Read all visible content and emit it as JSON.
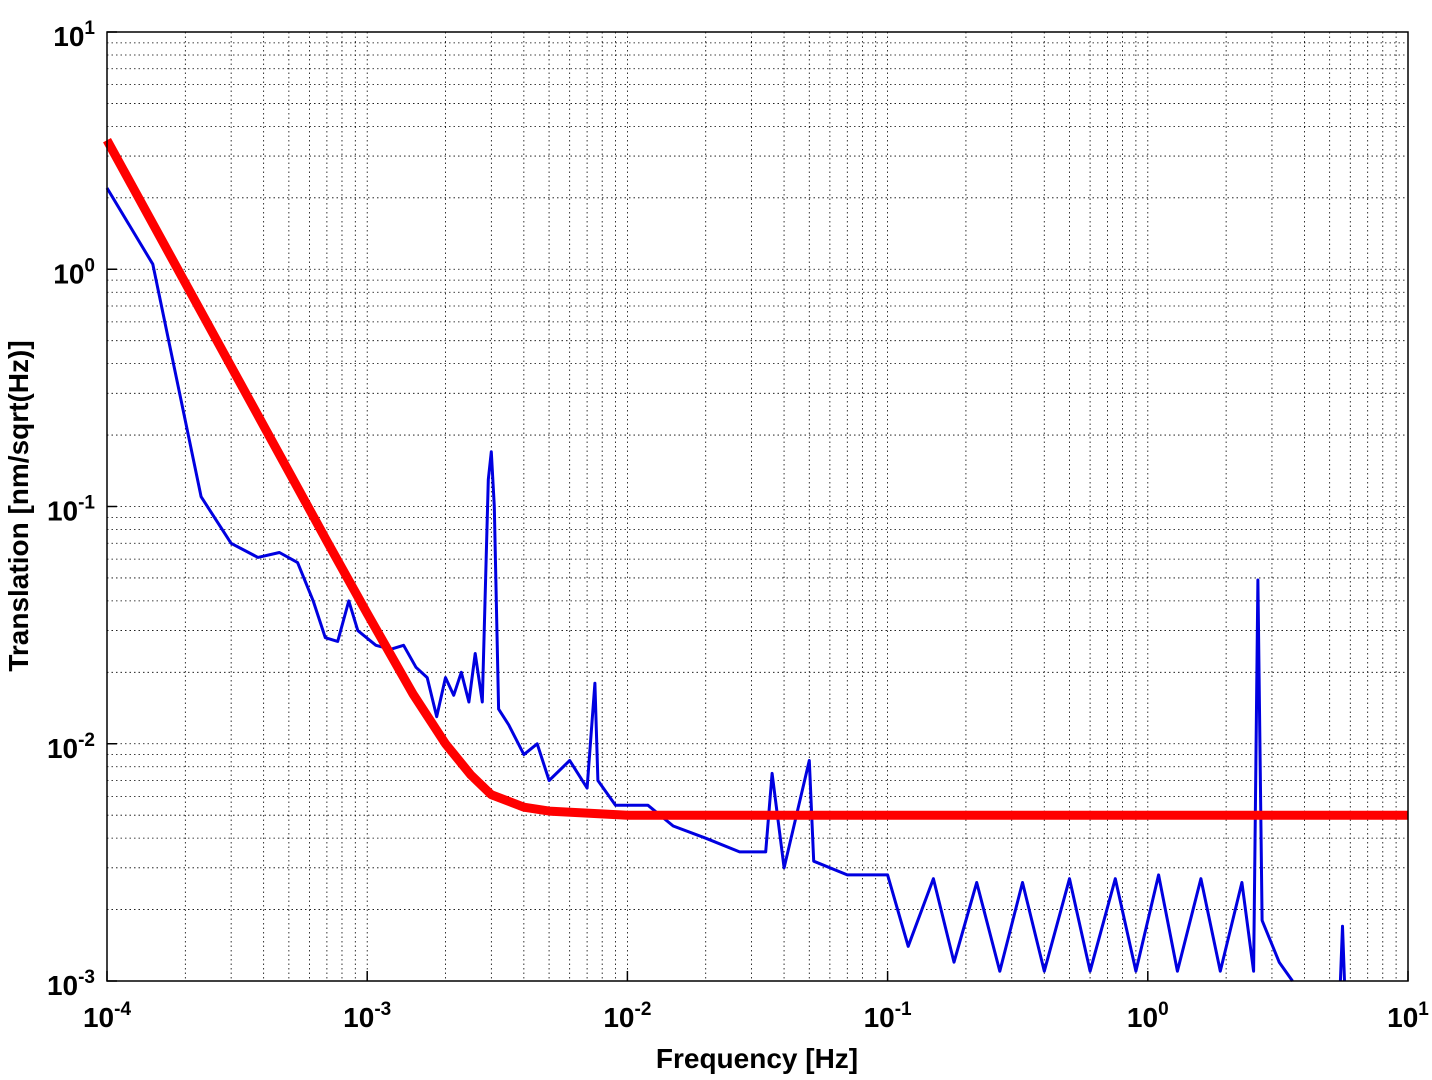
{
  "chart_data": {
    "type": "line",
    "xlabel": "Frequency [Hz]",
    "ylabel": "Translation [nm/sqrt(Hz)]",
    "xscale": "log",
    "yscale": "log",
    "grid": true,
    "minor_grid": true,
    "xlim": [
      0.0001,
      10
    ],
    "ylim": [
      0.001,
      10
    ],
    "xticks": [
      {
        "value": 0.0001,
        "label": "10^-4"
      },
      {
        "value": 0.001,
        "label": "10^-3"
      },
      {
        "value": 0.01,
        "label": "10^-2"
      },
      {
        "value": 0.1,
        "label": "10^-1"
      },
      {
        "value": 1,
        "label": "10^0"
      },
      {
        "value": 10,
        "label": "10^1"
      }
    ],
    "yticks": [
      {
        "value": 0.001,
        "label": "10^-3"
      },
      {
        "value": 0.01,
        "label": "10^-2"
      },
      {
        "value": 0.1,
        "label": "10^-1"
      },
      {
        "value": 1,
        "label": "10^0"
      },
      {
        "value": 10,
        "label": "10^1"
      }
    ],
    "series": [
      {
        "color": "#0000e0",
        "width": 3,
        "x": [
          0.0001,
          0.00015,
          0.00023,
          0.0003,
          0.00038,
          0.00046,
          0.00054,
          0.00062,
          0.00069,
          0.00077,
          0.00085,
          0.00092,
          0.00108,
          0.00123,
          0.00138,
          0.00154,
          0.0017,
          0.00185,
          0.002,
          0.00215,
          0.0023,
          0.00246,
          0.0026,
          0.00277,
          0.00292,
          0.003,
          0.00308,
          0.0032,
          0.0035,
          0.004,
          0.0045,
          0.005,
          0.006,
          0.007,
          0.0075,
          0.0077,
          0.009,
          0.012,
          0.015,
          0.02,
          0.027,
          0.034,
          0.036,
          0.04,
          0.05,
          0.052,
          0.07,
          0.1,
          0.12,
          0.15,
          0.18,
          0.22,
          0.27,
          0.33,
          0.4,
          0.5,
          0.6,
          0.75,
          0.9,
          1.1,
          1.3,
          1.6,
          1.9,
          2.3,
          2.55,
          2.65,
          2.75,
          3.2,
          3.6,
          null,
          5.5,
          5.6,
          5.7
        ],
        "values": [
          2.2,
          1.05,
          0.11,
          0.07,
          0.061,
          0.064,
          0.058,
          0.04,
          0.028,
          0.027,
          0.04,
          0.03,
          0.026,
          0.025,
          0.026,
          0.021,
          0.019,
          0.013,
          0.019,
          0.016,
          0.02,
          0.015,
          0.024,
          0.015,
          0.13,
          0.17,
          0.1,
          0.014,
          0.012,
          0.009,
          0.01,
          0.007,
          0.0085,
          0.0065,
          0.018,
          0.007,
          0.0055,
          0.0055,
          0.0045,
          0.004,
          0.0035,
          0.0035,
          0.0075,
          0.003,
          0.0085,
          0.0032,
          0.0028,
          0.0028,
          0.0014,
          0.0027,
          0.0012,
          0.0026,
          0.0011,
          0.0026,
          0.0011,
          0.0027,
          0.0011,
          0.0027,
          0.0011,
          0.0028,
          0.0011,
          0.0027,
          0.0011,
          0.0026,
          0.0011,
          0.049,
          0.0018,
          0.0012,
          0.001,
          null,
          0.001,
          0.0017,
          0.001
        ]
      },
      {
        "color": "#ff0000",
        "width": 9,
        "x": [
          0.0001,
          0.00015,
          0.0002,
          0.0003,
          0.0005,
          0.0007,
          0.001,
          0.0015,
          0.002,
          0.0025,
          0.003,
          0.004,
          0.005,
          0.01,
          10
        ],
        "values": [
          3.5,
          1.556,
          0.875,
          0.389,
          0.14,
          0.0714,
          0.0354,
          0.0162,
          0.01,
          0.0074,
          0.0061,
          0.0054,
          0.0052,
          0.005,
          0.005
        ]
      }
    ]
  }
}
